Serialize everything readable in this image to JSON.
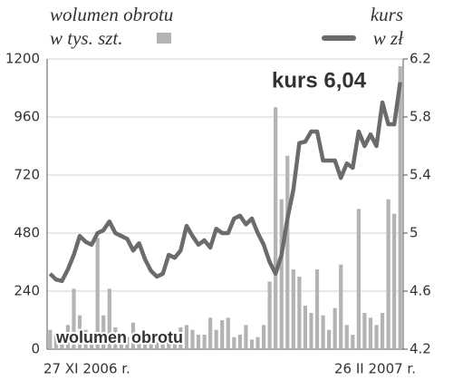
{
  "chart_data": {
    "type": "bar_line",
    "categories": [
      "27 XI 2006 r.",
      null,
      null,
      null,
      null,
      null,
      null,
      null,
      null,
      null,
      null,
      null,
      null,
      null,
      null,
      null,
      null,
      null,
      null,
      null,
      null,
      null,
      null,
      null,
      null,
      null,
      null,
      null,
      null,
      null,
      null,
      null,
      null,
      null,
      null,
      null,
      null,
      null,
      null,
      null,
      null,
      null,
      null,
      null,
      null,
      null,
      null,
      null,
      null,
      null,
      null,
      null,
      null,
      null,
      null,
      null,
      null,
      null,
      null,
      "26 II 2007 r."
    ],
    "series": [
      {
        "name": "wolumen obrotu",
        "unit": "w tys. szt.",
        "type": "bar",
        "color": "#b3b3b3",
        "values": [
          80,
          70,
          60,
          100,
          250,
          140,
          80,
          60,
          460,
          140,
          250,
          90,
          60,
          50,
          110,
          60,
          50,
          40,
          30,
          20,
          30,
          70,
          90,
          100,
          80,
          60,
          60,
          130,
          80,
          120,
          130,
          50,
          60,
          100,
          40,
          50,
          100,
          280,
          1000,
          620,
          800,
          330,
          300,
          180,
          150,
          330,
          140,
          80,
          170,
          350,
          100,
          60,
          580,
          150,
          130,
          100,
          150,
          620,
          560,
          1170
        ]
      },
      {
        "name": "kurs",
        "unit": "w zł",
        "type": "line",
        "axis": "y2",
        "color": "#6b6b6b",
        "values": [
          4.72,
          4.68,
          4.67,
          4.75,
          4.85,
          4.98,
          4.94,
          4.92,
          5.0,
          5.02,
          5.08,
          5.0,
          4.98,
          4.96,
          4.88,
          4.93,
          4.82,
          4.74,
          4.7,
          4.72,
          4.85,
          4.83,
          4.88,
          5.05,
          4.98,
          4.92,
          4.95,
          4.9,
          5.03,
          5.0,
          5.0,
          5.1,
          5.12,
          5.06,
          5.1,
          5.0,
          4.92,
          4.8,
          4.72,
          4.85,
          5.1,
          5.3,
          5.62,
          5.63,
          5.7,
          5.7,
          5.5,
          5.5,
          5.5,
          5.38,
          5.48,
          5.45,
          5.7,
          5.6,
          5.68,
          5.6,
          5.9,
          5.75,
          5.75,
          6.04
        ]
      }
    ],
    "ylim": [
      0,
      1200
    ],
    "yticks": [
      0,
      240,
      480,
      720,
      960,
      1200
    ],
    "y2lim": [
      4.2,
      6.2
    ],
    "y2ticks": [
      4.2,
      4.6,
      5.0,
      5.4,
      5.8,
      6.2
    ],
    "grid": true,
    "annotations": [
      "kurs 6,04",
      "wolumen obrotu"
    ]
  }
}
